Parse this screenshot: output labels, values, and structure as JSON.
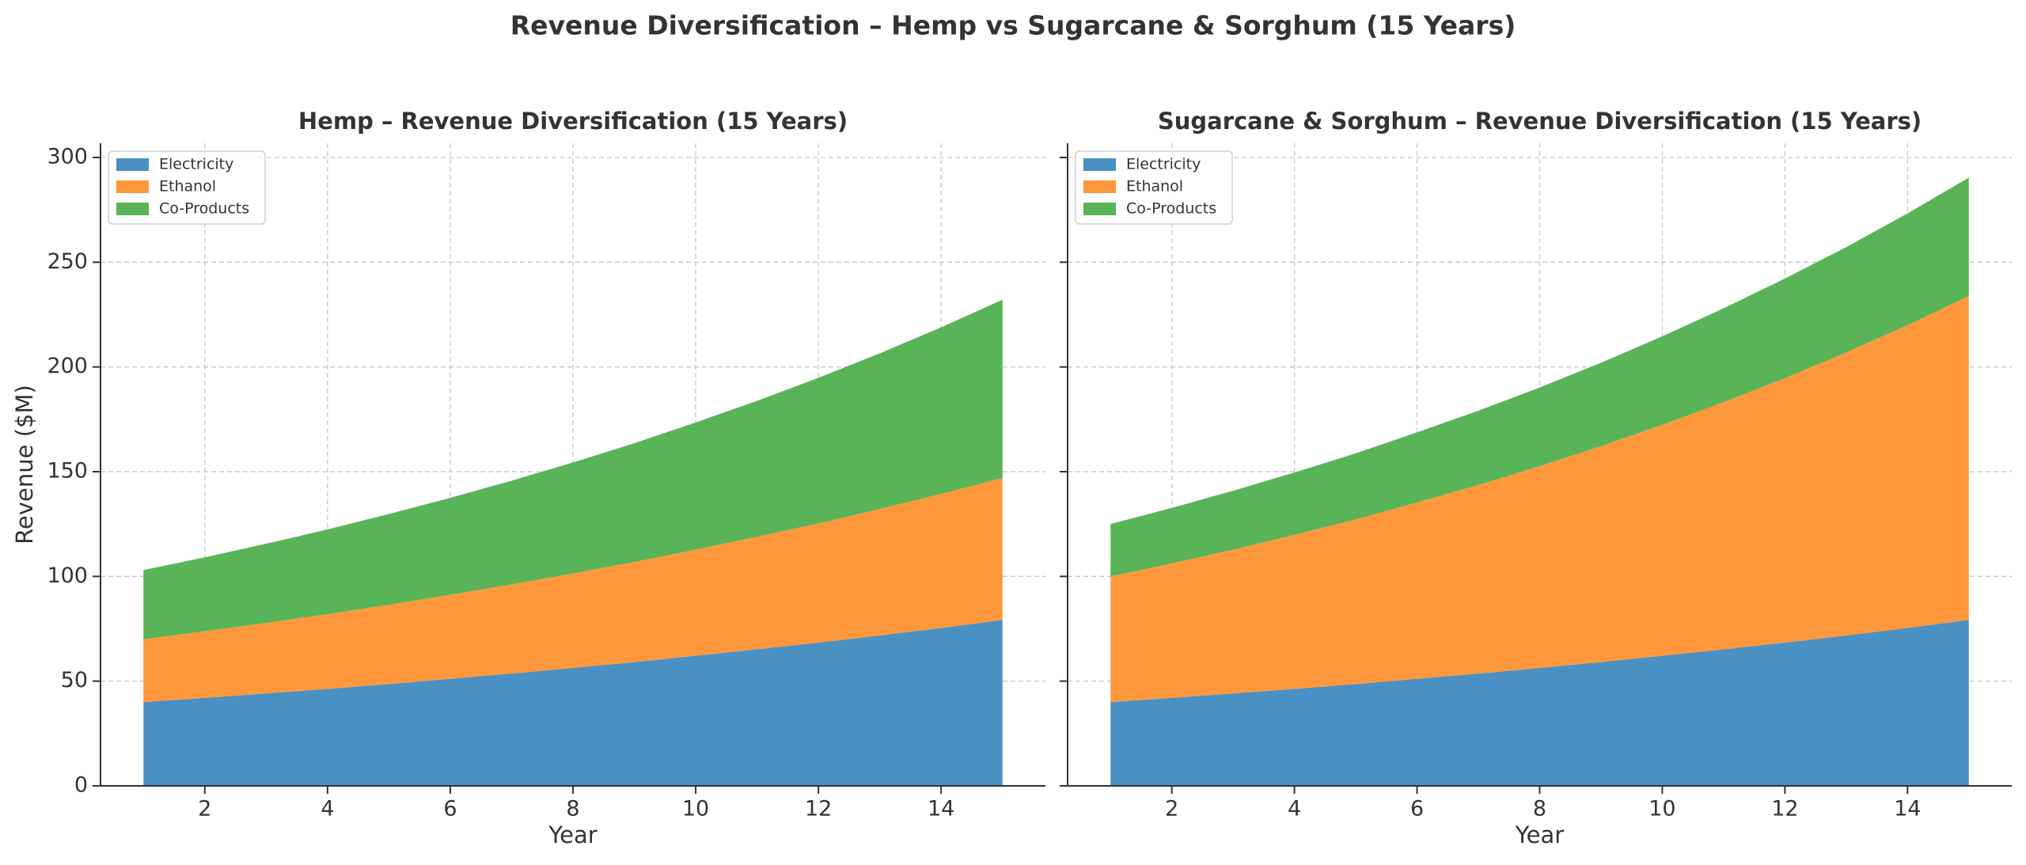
{
  "title": "Revenue Diversification – Hemp vs Sugarcane & Sorghum (15 Years)",
  "chart_data": [
    {
      "type": "area",
      "stacked": true,
      "title": "Hemp – Revenue Diversification (15 Years)",
      "xlabel": "Year",
      "ylabel": "Revenue ($M)",
      "x": [
        1,
        2,
        3,
        4,
        5,
        6,
        7,
        8,
        9,
        10,
        11,
        12,
        13,
        14,
        15
      ],
      "xlim": [
        0.3,
        15.7
      ],
      "ylim": [
        0,
        306.8
      ],
      "xticks": [
        2,
        4,
        6,
        8,
        10,
        12,
        14
      ],
      "yticks": [
        0,
        50,
        100,
        150,
        200,
        250,
        300
      ],
      "ytick_labels": true,
      "grid": true,
      "legend": "upper left",
      "series": [
        {
          "name": "Electricity",
          "color": "#4a90c3",
          "values": [
            40,
            42,
            44.1,
            46.3,
            48.6,
            51.1,
            53.6,
            56.3,
            59.1,
            62.1,
            65.2,
            68.4,
            71.8,
            75.4,
            79.2
          ]
        },
        {
          "name": "Ethanol",
          "color": "#ff983c",
          "values": [
            30,
            31.8,
            33.7,
            35.7,
            37.9,
            40.1,
            42.6,
            45.1,
            47.8,
            50.7,
            53.7,
            56.9,
            60.4,
            64,
            67.8
          ]
        },
        {
          "name": "Co-Products",
          "color": "#59b457",
          "values": [
            33,
            35.3,
            37.8,
            40.4,
            43.3,
            46.3,
            49.5,
            53,
            56.7,
            60.7,
            64.9,
            69.5,
            74.3,
            79.5,
            85.1
          ]
        }
      ]
    },
    {
      "type": "area",
      "stacked": true,
      "title": "Sugarcane & Sorghum – Revenue Diversification (15 Years)",
      "xlabel": "Year",
      "x": [
        1,
        2,
        3,
        4,
        5,
        6,
        7,
        8,
        9,
        10,
        11,
        12,
        13,
        14,
        15
      ],
      "xlim": [
        0.3,
        15.7
      ],
      "ylim": [
        0,
        306.8
      ],
      "xticks": [
        2,
        4,
        6,
        8,
        10,
        12,
        14
      ],
      "yticks": [
        0,
        50,
        100,
        150,
        200,
        250,
        300
      ],
      "ytick_labels": false,
      "grid": true,
      "legend": "upper left",
      "series": [
        {
          "name": "Electricity",
          "color": "#4a90c3",
          "values": [
            40,
            42,
            44.1,
            46.3,
            48.6,
            51.1,
            53.6,
            56.3,
            59.1,
            62.1,
            65.2,
            68.4,
            71.8,
            75.4,
            79.2
          ]
        },
        {
          "name": "Ethanol",
          "color": "#ff983c",
          "values": [
            60,
            64.2,
            68.7,
            73.5,
            78.6,
            84.2,
            90,
            96.3,
            103.1,
            110.3,
            118,
            126.3,
            135.1,
            144.6,
            154.7
          ]
        },
        {
          "name": "Co-Products",
          "color": "#59b457",
          "values": [
            25,
            26.5,
            28.1,
            29.8,
            31.6,
            33.5,
            35.5,
            37.6,
            39.8,
            42.2,
            44.8,
            47.5,
            50.3,
            53.3,
            56.5
          ]
        }
      ]
    }
  ]
}
